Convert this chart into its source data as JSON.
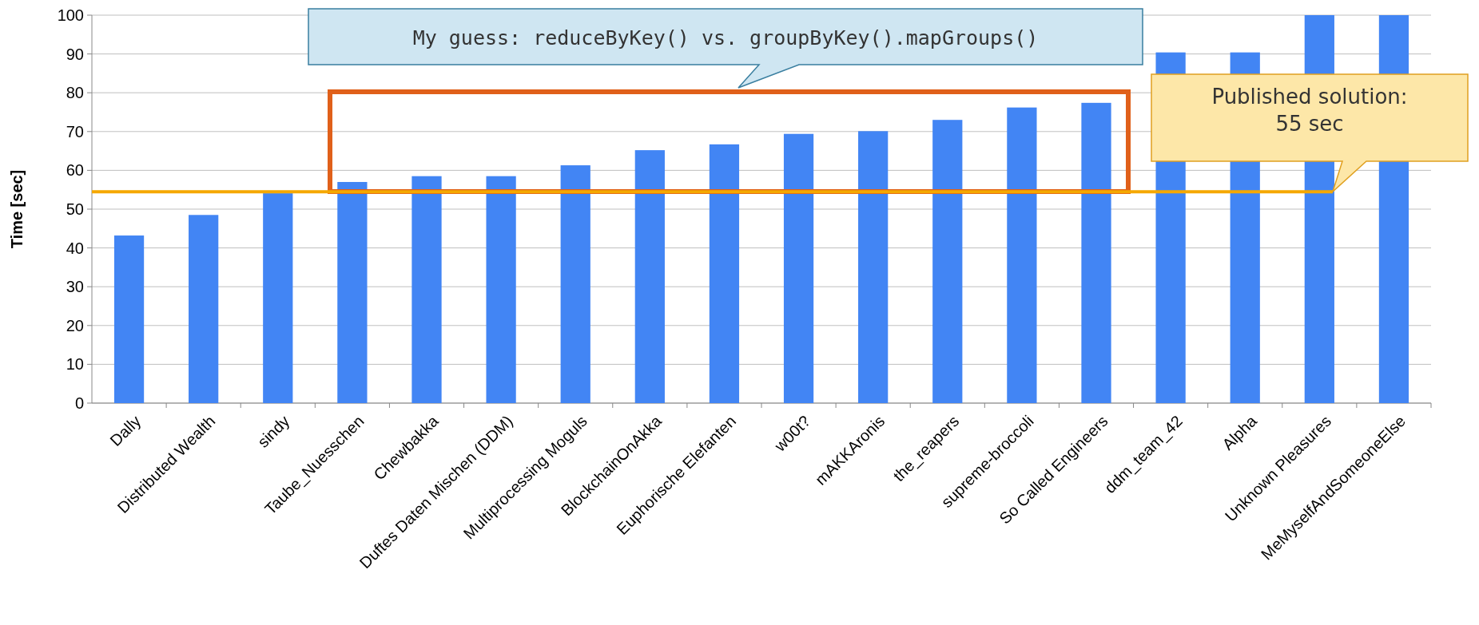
{
  "chart_data": {
    "type": "bar",
    "ylabel": "Time [sec]",
    "categories": [
      "Dally",
      "Distributed Wealth",
      "sindy",
      "Taube_Nuesschen",
      "Chewbakka",
      "Duftes Daten Mischen (DDM)",
      "Multiprocessing Moguls",
      "BlockchainOnAkka",
      "Euphorische Elefanten",
      "w00t?",
      "mAKKAronis",
      "the_reapers",
      "supreme-broccoli",
      "So Called Engineers",
      "ddm_team_42",
      "Alpha",
      "Unknown Pleasures",
      "MeMyselfAndSomeoneElse"
    ],
    "values": [
      43.2,
      48.5,
      54.1,
      57,
      58.5,
      58.5,
      61.3,
      65.2,
      66.7,
      69.4,
      70.1,
      73,
      76.2,
      77.4,
      90.4,
      90.4,
      100,
      100
    ],
    "color": "#4285f4",
    "ylim": [
      0,
      100
    ],
    "yticks": [
      0,
      10,
      20,
      30,
      40,
      50,
      60,
      70,
      80,
      90,
      100
    ],
    "grid": "y",
    "ref_lines": [
      {
        "axis": "y",
        "value": 54.5,
        "label": "Published solution: 55 sec",
        "color": "#f5a800"
      }
    ],
    "annotations": [
      "My guess: reduceByKey() vs. groupByKey().mapGroups()"
    ]
  }
}
